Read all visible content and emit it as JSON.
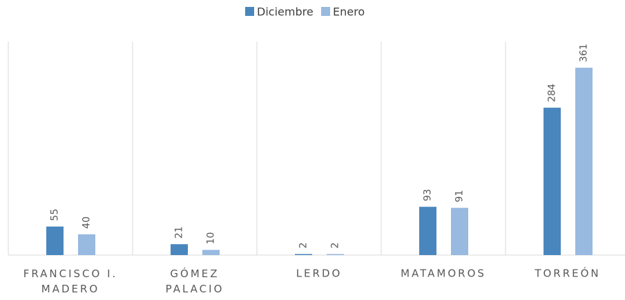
{
  "chart_data": {
    "type": "bar",
    "categories": [
      "FRANCISCO I. MADERO",
      "GÓMEZ PALACIO",
      "LERDO",
      "MATAMOROS",
      "TORREÓN"
    ],
    "series": [
      {
        "name": "Diciembre",
        "color": "#4a86be",
        "values": [
          55,
          21,
          2,
          93,
          284
        ]
      },
      {
        "name": "Enero",
        "color": "#98b9e0",
        "values": [
          40,
          10,
          2,
          91,
          361
        ]
      }
    ],
    "legend": "top"
  }
}
